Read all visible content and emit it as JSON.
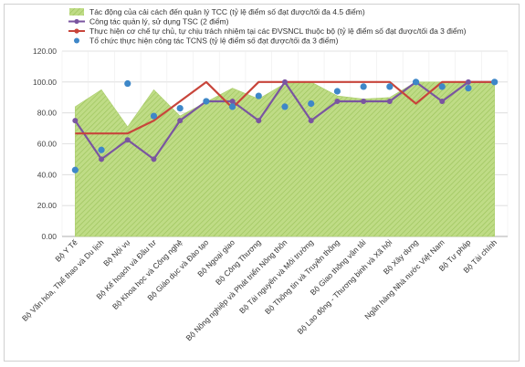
{
  "chart_data": {
    "type": "line",
    "title": "",
    "xlabel": "",
    "ylabel": "",
    "ylim": [
      0,
      120
    ],
    "yticks": [
      "0.00",
      "20.00",
      "40.00",
      "60.00",
      "80.00",
      "100.00",
      "120.00"
    ],
    "grid": "horizontal",
    "legend_position": "top-left",
    "categories": [
      "Bộ Y Tế",
      "Bộ Văn hóa, Thể thao và Du lịch",
      "Bộ Nội vụ",
      "Bộ Kế hoạch và Đầu tư",
      "Bộ Khoa học và Công nghệ",
      "Bộ Giáo dục và Đào tạo",
      "Bộ Ngoại giao",
      "Bộ Công Thương",
      "Bộ Nông nghiệp và Phát triển Nông thôn",
      "Bộ Tài nguyên và Môi trường",
      "Bộ Thông tin và Truyền thông",
      "Bộ Giao thông vận tải",
      "Bộ Lao động - Thương binh và Xã hội",
      "Bộ Xây dựng",
      "Ngân hàng Nhà nước Việt Nam",
      "Bộ Tư pháp",
      "Bộ Tài chính"
    ],
    "series": [
      {
        "name": "Tác động của cải cách đến quản lý TCC (tỷ lệ điểm số đạt được/tối đa 4.5 điểm)",
        "kind": "area",
        "color": "#b7d77e",
        "values": [
          84,
          95,
          71,
          95,
          78,
          87,
          96,
          89,
          99,
          100,
          91,
          89,
          90,
          100,
          100,
          100,
          100
        ]
      },
      {
        "name": "Công tác quản lý, sử dụng TSC (2 điểm)",
        "kind": "line",
        "color": "#7a55a0",
        "values": [
          75,
          50,
          62.5,
          50,
          75,
          87.5,
          87.5,
          75,
          100,
          75,
          87.5,
          87.5,
          87.5,
          100,
          87.5,
          100,
          100
        ]
      },
      {
        "name": "Thực hiện cơ chế tự chủ, tự chịu trách nhiệm tại các ĐVSNCL thuộc bộ (tỷ lệ điểm số đạt được/tối đa 3 điểm)",
        "kind": "line",
        "color": "#c8453b",
        "values": [
          66.7,
          66.7,
          66.7,
          75,
          87.5,
          100,
          83.3,
          100,
          100,
          100,
          100,
          100,
          100,
          86,
          100,
          100,
          100
        ]
      },
      {
        "name": "Tổ chức thực hiện công tác TCNS  (tỷ lệ điểm số đạt được/tối đa 3 điểm)",
        "kind": "scatter",
        "color": "#3e87c8",
        "values": [
          43,
          56,
          99,
          78,
          83,
          87.5,
          84,
          91,
          84,
          86,
          94,
          97,
          97,
          100,
          97,
          96,
          100
        ]
      }
    ]
  }
}
